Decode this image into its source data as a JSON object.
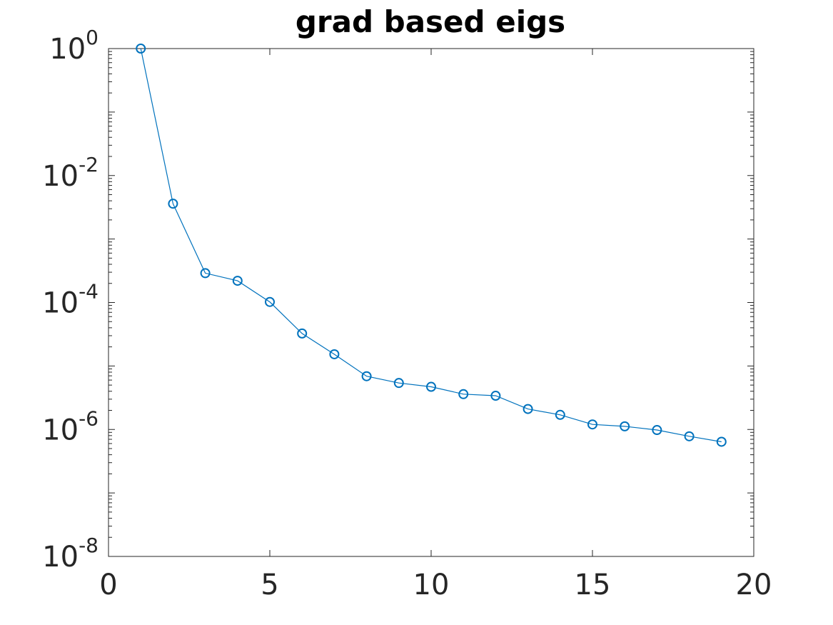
{
  "chart_data": {
    "type": "line",
    "title": "grad based eigs",
    "xlabel": "",
    "ylabel": "",
    "yscale": "log",
    "xlim": [
      0,
      20
    ],
    "ylim": [
      1e-08,
      1
    ],
    "xticks": [
      0,
      5,
      10,
      15,
      20
    ],
    "yticks": [
      {
        "base": "10",
        "exp": "0",
        "value": 1
      },
      {
        "base": "10",
        "exp": "-2",
        "value": 0.01
      },
      {
        "base": "10",
        "exp": "-4",
        "value": 0.0001
      },
      {
        "base": "10",
        "exp": "-6",
        "value": 1e-06
      },
      {
        "base": "10",
        "exp": "-8",
        "value": 1e-08
      }
    ],
    "grid": false,
    "box": true,
    "marker": "circle",
    "color": "#0072BD",
    "series": [
      {
        "x": [
          1,
          2,
          3,
          4,
          5,
          6,
          7,
          8,
          9,
          10,
          11,
          12,
          13,
          14,
          15,
          16,
          17,
          18,
          19
        ],
        "values": [
          1.0,
          0.0036,
          0.00029,
          0.00022,
          0.000102,
          3.25e-05,
          1.53e-05,
          6.9e-06,
          5.4e-06,
          4.7e-06,
          3.6e-06,
          3.4e-06,
          2.1e-06,
          1.7e-06,
          1.2e-06,
          1.12e-06,
          9.8e-07,
          7.8e-07,
          6.4e-07
        ]
      }
    ]
  }
}
